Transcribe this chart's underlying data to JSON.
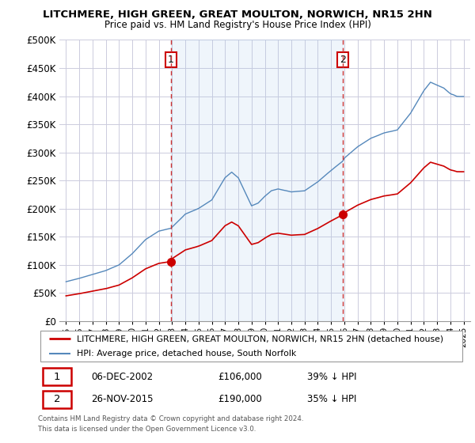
{
  "title": "LITCHMERE, HIGH GREEN, GREAT MOULTON, NORWICH, NR15 2HN",
  "subtitle": "Price paid vs. HM Land Registry's House Price Index (HPI)",
  "legend_line1": "LITCHMERE, HIGH GREEN, GREAT MOULTON, NORWICH, NR15 2HN (detached house)",
  "legend_line2": "HPI: Average price, detached house, South Norfolk",
  "footnote1": "Contains HM Land Registry data © Crown copyright and database right 2024.",
  "footnote2": "This data is licensed under the Open Government Licence v3.0.",
  "sale1_date": "06-DEC-2002",
  "sale1_price": "£106,000",
  "sale1_hpi": "39% ↓ HPI",
  "sale2_date": "26-NOV-2015",
  "sale2_price": "£190,000",
  "sale2_hpi": "35% ↓ HPI",
  "sale1_year": 2002.92,
  "sale2_year": 2015.9,
  "sale1_price_val": 106000,
  "sale2_price_val": 190000,
  "color_house": "#cc0000",
  "color_hpi": "#5588bb",
  "color_vline": "#cc3333",
  "color_shade": "#ddeeff",
  "ylim_min": 0,
  "ylim_max": 500000,
  "xlim_min": 1994.5,
  "xlim_max": 2025.5,
  "background_color": "#ffffff",
  "grid_color": "#ccccdd"
}
